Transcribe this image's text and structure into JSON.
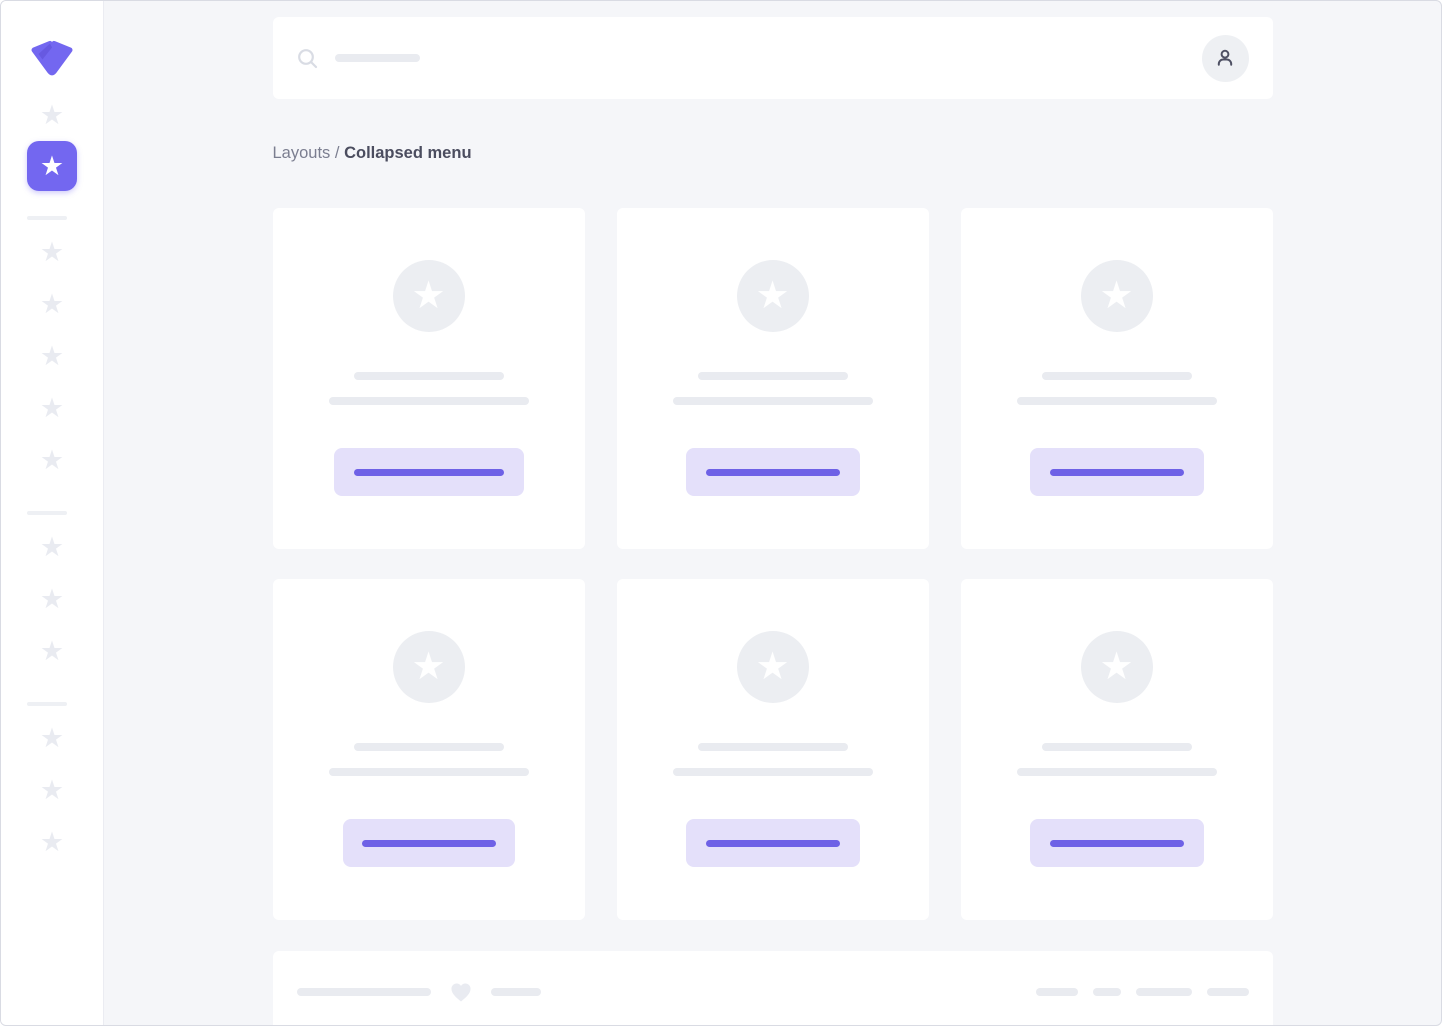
{
  "colors": {
    "brand": "#7367f0",
    "brand_button_bg": "#e4e0fa",
    "brand_button_bar": "#6e61e6",
    "page_background": "#f5f6f9",
    "card_background": "#ffffff",
    "placeholder_bar": "#e9ebf0",
    "placeholder_circle": "#eceef2",
    "sidebar_star": "#e9ebf1",
    "breadcrumb_link": "#7b7e90",
    "breadcrumb_current": "#4b4d5f",
    "avatar_icon": "#4e5063"
  },
  "icons": {
    "star_glyph": "★",
    "logo": "brand-v-mark",
    "search": "magnifier",
    "user": "person-silhouette",
    "heart": "heart"
  },
  "header": {
    "search_value": "",
    "search_placeholder_bar_width": 85
  },
  "breadcrumb": {
    "parent": "Layouts",
    "separator": "/",
    "current": "Collapsed menu"
  },
  "sidebar": {
    "items": [
      {
        "type": "star"
      },
      {
        "type": "active-star"
      },
      {
        "type": "divider"
      },
      {
        "type": "star"
      },
      {
        "type": "star"
      },
      {
        "type": "star"
      },
      {
        "type": "star"
      },
      {
        "type": "star"
      },
      {
        "type": "divider"
      },
      {
        "type": "star"
      },
      {
        "type": "star"
      },
      {
        "type": "star"
      },
      {
        "type": "divider"
      },
      {
        "type": "star"
      },
      {
        "type": "star"
      },
      {
        "type": "star"
      }
    ]
  },
  "cards": {
    "count": 6,
    "title_bar_width": 150,
    "subtitle_bar_width": 200,
    "items": [
      {
        "button_width": 190,
        "button_bar_width": 150
      },
      {
        "button_width": 174,
        "button_bar_width": 134
      },
      {
        "button_width": 174,
        "button_bar_width": 134
      },
      {
        "button_width": 172,
        "button_bar_width": 134
      },
      {
        "button_width": 174,
        "button_bar_width": 134
      },
      {
        "button_width": 174,
        "button_bar_width": 134
      }
    ]
  },
  "footer": {
    "left_bars": [
      134,
      50
    ],
    "right_pills": [
      42,
      28,
      56,
      42
    ]
  }
}
